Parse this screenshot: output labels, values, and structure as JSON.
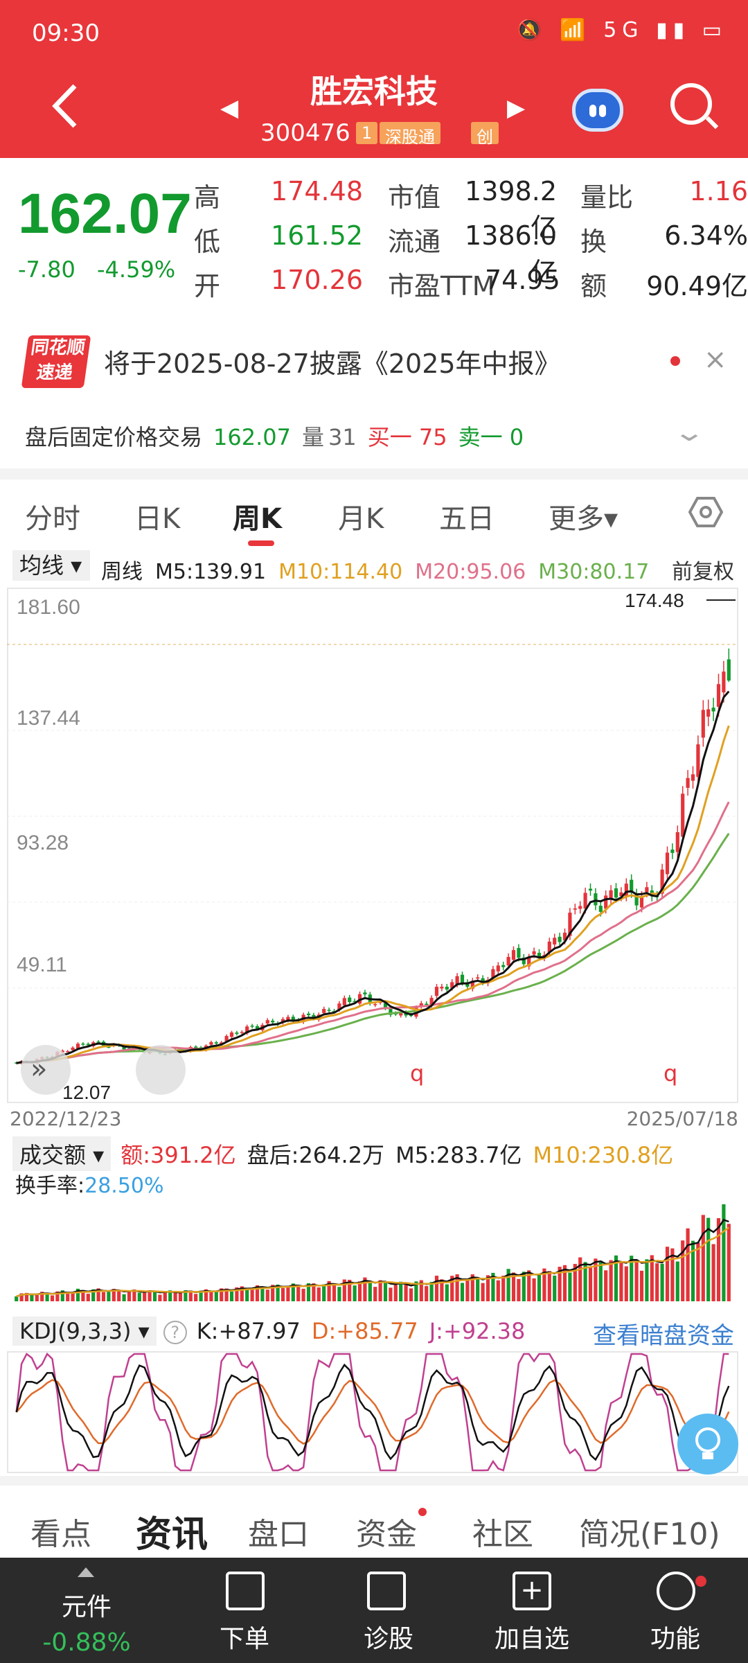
{
  "status": {
    "time": "09:30",
    "icons": "🔕 📶 5G ▮▮ ▭"
  },
  "header": {
    "title": "胜宏科技",
    "code": "300476",
    "badge_num": "1",
    "badge_hk": "深股通",
    "badge_chuang": "创"
  },
  "quote": {
    "price": "162.07",
    "change": "-7.80",
    "change_pct": "-4.59%",
    "high_label": "高",
    "high": "174.48",
    "low_label": "低",
    "low": "161.52",
    "open_label": "开",
    "open": "170.26",
    "mcap_label": "市值",
    "mcap": "1398.2亿",
    "float_label": "流通",
    "float": "1386.0亿",
    "pe_label": "市盈TTM",
    "pe": "74.95",
    "vr_label": "量比",
    "vr": "1.16",
    "turn_label": "换",
    "turn": "6.34%",
    "amt_label": "额",
    "amt": "90.49亿"
  },
  "notice": {
    "logo_line1": "同花顺",
    "logo_line2": "速递",
    "text": "将于2025-08-27披露《2025年中报》",
    "close": "×"
  },
  "after_hours": {
    "label": "盘后固定价格交易",
    "price": "162.07",
    "vol_label": "量",
    "vol": "31",
    "buy": "买一 75",
    "sell": "卖一 0"
  },
  "kline_tabs": [
    "分时",
    "日K",
    "周K",
    "月K",
    "五日",
    "更多▾"
  ],
  "ma_legend": {
    "selector": "均线 ▾",
    "period": "周线",
    "m5": "M5:139.91",
    "m10": "M10:114.40",
    "m20": "M20:95.06",
    "m30": "M30:80.17",
    "adjust": "前复权"
  },
  "chart_axis": {
    "y_labels": [
      "181.60",
      "137.44",
      "93.28",
      "49.11"
    ],
    "high_mark": "174.48",
    "low_mark": "12.07",
    "start": "2022/12/23",
    "end": "2025/07/18",
    "q": "q"
  },
  "volume": {
    "selector": "成交额 ▾",
    "amount": "额:391.2亿",
    "after": "盘后:264.2万",
    "m5": "M5:283.7亿",
    "m10": "M10:230.8亿",
    "turnover_label": "换手率:",
    "turnover": "28.50%"
  },
  "kdj": {
    "selector": "KDJ(9,3,3) ▾",
    "help": "?",
    "k": "K:+87.97",
    "d": "D:+85.77",
    "j": "J:+92.38",
    "link": "查看暗盘资金"
  },
  "bottom_tabs": [
    "看点",
    "资讯",
    "盘口",
    "资金",
    "社区",
    "简况(F10)"
  ],
  "bottom_bar": {
    "yuanjian": "元件",
    "yuanjian_pct": "-0.88%",
    "items": [
      "下单",
      "诊股",
      "加自选",
      "功能"
    ]
  },
  "colors": {
    "brand": "#e8363a",
    "up": "#e3343a",
    "down": "#129a2e",
    "m10": "#e0a020",
    "m20": "#e0708a",
    "m30": "#6ab04c"
  },
  "chart_data": {
    "type": "candlestick",
    "period": "weekly",
    "x_range": [
      "2022/12/23",
      "2025/07/18"
    ],
    "ylim": [
      5,
      190
    ],
    "y_ticks": [
      49.11,
      93.28,
      137.44,
      181.6
    ],
    "close_path": [
      14,
      15,
      17,
      20,
      22,
      21,
      20,
      19,
      18,
      19,
      20,
      22,
      26,
      28,
      30,
      31,
      32,
      34,
      38,
      40,
      36,
      32,
      35,
      42,
      46,
      45,
      48,
      56,
      54,
      58,
      65,
      80,
      75,
      82,
      78,
      80,
      100,
      130,
      155,
      162.07
    ],
    "max": 174.48,
    "min": 12.07
  }
}
